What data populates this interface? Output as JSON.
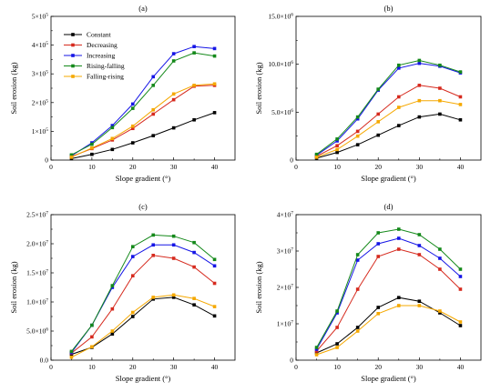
{
  "xlabel": "Slope gradient (°)",
  "ylabel": "Soil erosion (kg)",
  "legend": [
    {
      "name": "Constant",
      "color": "#000000"
    },
    {
      "name": "Decreasing",
      "color": "#d62a1e"
    },
    {
      "name": "Increasing",
      "color": "#1515e6"
    },
    {
      "name": "Rising-falling",
      "color": "#14891a"
    },
    {
      "name": "Falling-rising",
      "color": "#f5a800"
    }
  ],
  "chart_data": [
    {
      "type": "line",
      "panel": "(a)",
      "x": [
        5,
        10,
        15,
        20,
        25,
        30,
        35,
        40
      ],
      "xlim": [
        0,
        45
      ],
      "xticks": [
        "0",
        "10",
        "20",
        "30",
        "40"
      ],
      "ylim": [
        0,
        500000
      ],
      "yticks": [
        "0",
        "1×10⁵",
        "2×10⁵",
        "3×10⁵",
        "4×10⁵",
        "5×10⁵"
      ],
      "xlabel": "Slope gradient (°)",
      "ylabel": "Soil erosion (kg)",
      "legend_position": "top-left",
      "series": [
        {
          "name": "Constant",
          "color": "#000000",
          "values": [
            5000,
            20000,
            37000,
            60000,
            85000,
            112000,
            140000,
            165000
          ]
        },
        {
          "name": "Decreasing",
          "color": "#d62a1e",
          "values": [
            12000,
            40000,
            70000,
            110000,
            160000,
            210000,
            257000,
            260000
          ]
        },
        {
          "name": "Increasing",
          "color": "#1515e6",
          "values": [
            15000,
            60000,
            120000,
            195000,
            290000,
            370000,
            395000,
            388000
          ]
        },
        {
          "name": "Rising-falling",
          "color": "#14891a",
          "values": [
            18000,
            55000,
            113000,
            180000,
            260000,
            345000,
            373000,
            362000
          ]
        },
        {
          "name": "Falling-rising",
          "color": "#f5a800",
          "values": [
            10000,
            42000,
            75000,
            118000,
            175000,
            230000,
            260000,
            265000
          ]
        }
      ]
    },
    {
      "type": "line",
      "panel": "(b)",
      "x": [
        5,
        10,
        15,
        20,
        25,
        30,
        35,
        40
      ],
      "xlim": [
        0,
        45
      ],
      "xticks": [
        "0",
        "10",
        "20",
        "30",
        "40"
      ],
      "ylim": [
        0,
        15000000
      ],
      "yticks": [
        "0",
        "5.0×10⁶",
        "10.0×10⁶",
        "15.0×10⁶"
      ],
      "xlabel": "Slope gradient (°)",
      "ylabel": "Soil erosion (kg)",
      "series": [
        {
          "name": "Constant",
          "color": "#000000",
          "values": [
            200000,
            800000,
            1600000,
            2600000,
            3600000,
            4500000,
            4800000,
            4200000
          ]
        },
        {
          "name": "Decreasing",
          "color": "#d62a1e",
          "values": [
            400000,
            1500000,
            3000000,
            4800000,
            6600000,
            7800000,
            7500000,
            6600000
          ]
        },
        {
          "name": "Increasing",
          "color": "#1515e6",
          "values": [
            500000,
            2000000,
            4300000,
            7300000,
            9600000,
            10100000,
            9800000,
            9100000
          ]
        },
        {
          "name": "Rising-falling",
          "color": "#14891a",
          "values": [
            600000,
            2200000,
            4500000,
            7400000,
            9900000,
            10400000,
            9900000,
            9200000
          ]
        },
        {
          "name": "Falling-rising",
          "color": "#f5a800",
          "values": [
            300000,
            1100000,
            2500000,
            4000000,
            5500000,
            6200000,
            6200000,
            5800000
          ]
        }
      ]
    },
    {
      "type": "line",
      "panel": "(c)",
      "x": [
        5,
        10,
        15,
        20,
        25,
        30,
        35,
        40
      ],
      "xlim": [
        0,
        45
      ],
      "xticks": [
        "0",
        "10",
        "20",
        "30",
        "40"
      ],
      "ylim": [
        0,
        25000000
      ],
      "yticks": [
        "0.0",
        "5.0×10⁶",
        "1.0×10⁷",
        "1.5×10⁷",
        "2.0×10⁷",
        "2.5×10⁷"
      ],
      "xlabel": "Slope gradient (°)",
      "ylabel": "Soil erosion (kg)",
      "series": [
        {
          "name": "Constant",
          "color": "#000000",
          "values": [
            1000000,
            2200000,
            4500000,
            7500000,
            10500000,
            10800000,
            9500000,
            7600000
          ]
        },
        {
          "name": "Decreasing",
          "color": "#d62a1e",
          "values": [
            1200000,
            4000000,
            8800000,
            14500000,
            18000000,
            17500000,
            16000000,
            13200000
          ]
        },
        {
          "name": "Increasing",
          "color": "#1515e6",
          "values": [
            1300000,
            6000000,
            12500000,
            17800000,
            19800000,
            19800000,
            18500000,
            16200000
          ]
        },
        {
          "name": "Rising-falling",
          "color": "#14891a",
          "values": [
            1500000,
            6000000,
            12800000,
            19500000,
            21500000,
            21300000,
            20200000,
            17300000
          ]
        },
        {
          "name": "Falling-rising",
          "color": "#f5a800",
          "values": [
            500000,
            2300000,
            5000000,
            8200000,
            10800000,
            11200000,
            10600000,
            9200000
          ]
        }
      ]
    },
    {
      "type": "line",
      "panel": "(d)",
      "x": [
        5,
        10,
        15,
        20,
        25,
        30,
        35,
        40
      ],
      "xlim": [
        0,
        45
      ],
      "xticks": [
        "0",
        "10",
        "20",
        "30",
        "40"
      ],
      "ylim": [
        0,
        40000000
      ],
      "yticks": [
        "0",
        "1×10⁷",
        "2×10⁷",
        "3×10⁷",
        "4×10⁷"
      ],
      "xlabel": "Slope gradient (°)",
      "ylabel": "Soil erosion (kg)",
      "series": [
        {
          "name": "Constant",
          "color": "#000000",
          "values": [
            2000000,
            4500000,
            9000000,
            14500000,
            17200000,
            16200000,
            13000000,
            9500000
          ]
        },
        {
          "name": "Decreasing",
          "color": "#d62a1e",
          "values": [
            2500000,
            9000000,
            19500000,
            28500000,
            30500000,
            29000000,
            25000000,
            19500000
          ]
        },
        {
          "name": "Increasing",
          "color": "#1515e6",
          "values": [
            3000000,
            13000000,
            27500000,
            32000000,
            33500000,
            31500000,
            28000000,
            23000000
          ]
        },
        {
          "name": "Rising-falling",
          "color": "#14891a",
          "values": [
            3500000,
            13500000,
            29000000,
            35000000,
            36000000,
            34500000,
            30500000,
            25000000
          ]
        },
        {
          "name": "Falling-rising",
          "color": "#f5a800",
          "values": [
            1500000,
            3500000,
            8000000,
            12800000,
            15000000,
            15000000,
            13500000,
            10500000
          ]
        }
      ]
    }
  ]
}
